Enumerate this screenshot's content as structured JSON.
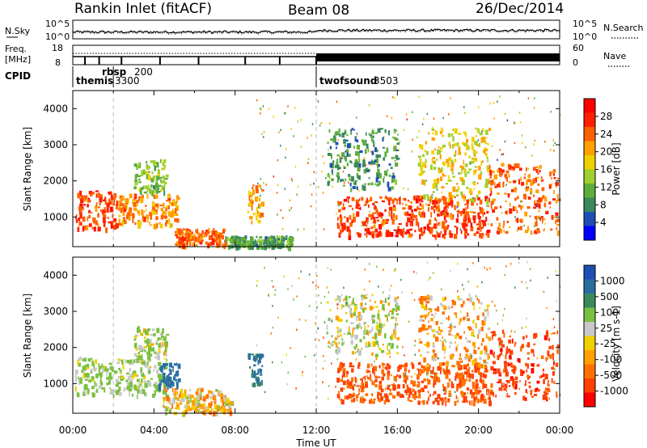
{
  "header": {
    "station": "Rankin Inlet (fitACF)",
    "beam": "Beam 08",
    "date": "26/Dec/2014"
  },
  "panels": {
    "nsky": {
      "left_label": "N.Sky",
      "right_label": "N.Search",
      "left_top": "10^5",
      "left_bottom": "10^0",
      "right_top": "10^5",
      "right_bottom": "10^0"
    },
    "freq": {
      "left_label_1": "Freq.",
      "left_label_2": "[MHz]",
      "left_top": "18",
      "left_bottom": "8",
      "right_label": "Nave",
      "right_top": "60",
      "right_bottom": "0"
    },
    "cpid": {
      "label": "CPID",
      "modes": [
        {
          "name": "themis",
          "id": "3300",
          "start": 0.0
        },
        {
          "name": "rbsp",
          "id": "200",
          "start": 2.0
        },
        {
          "name": "twofsound",
          "id": "3503",
          "start": 12.0
        }
      ]
    }
  },
  "axes": {
    "ylabel": "Slant Range [km]",
    "xlabel": "Time UT",
    "yticks": [
      "1000",
      "2000",
      "3000",
      "4000"
    ],
    "xticks": [
      "00:00",
      "04:00",
      "08:00",
      "12:00",
      "16:00",
      "20:00",
      "00:00"
    ]
  },
  "power_scale": {
    "label": "Power [dB]",
    "ticks": [
      "4",
      "8",
      "12",
      "16",
      "20",
      "24",
      "28"
    ],
    "colors": [
      "#0000ff",
      "#1f4fb4",
      "#3a8a5c",
      "#5fae3a",
      "#a0d030",
      "#f0d000",
      "#ffa000",
      "#ff6000",
      "#ff2000",
      "#ff0000"
    ]
  },
  "velocity_scale": {
    "label": "Velocity [m s-1]",
    "ticks": [
      "1000",
      "500",
      "100",
      "25",
      "-25",
      "-100",
      "-500",
      "-1000"
    ],
    "colors": [
      "#1f4fb4",
      "#2a6ea0",
      "#3a8a5c",
      "#7ac040",
      "#c8c8c8",
      "#f0d000",
      "#ffa000",
      "#ff7000",
      "#ff4000",
      "#ff0000"
    ]
  },
  "chart_data": {
    "type": "heatmap",
    "x_unit": "hours UT",
    "xlim": [
      0,
      24
    ],
    "ylim": [
      180,
      4500
    ],
    "power_regions": [
      {
        "t0": 0.1,
        "t1": 2.2,
        "r0": 700,
        "r1": 1750,
        "power": 26
      },
      {
        "t0": 2.2,
        "t1": 5.2,
        "r0": 800,
        "r1": 1650,
        "power": 22
      },
      {
        "t0": 5.0,
        "t1": 7.5,
        "r0": 250,
        "r1": 700,
        "power": 24
      },
      {
        "t0": 7.5,
        "t1": 10.8,
        "r0": 200,
        "r1": 500,
        "power": 10
      },
      {
        "t0": 8.6,
        "t1": 9.3,
        "r0": 900,
        "r1": 1900,
        "power": 20
      },
      {
        "t0": 3.0,
        "t1": 4.6,
        "r0": 1700,
        "r1": 2600,
        "power": 13
      },
      {
        "t0": 13.0,
        "t1": 20.5,
        "r0": 500,
        "r1": 1600,
        "power": 26
      },
      {
        "t0": 12.5,
        "t1": 16.0,
        "r0": 1800,
        "r1": 3500,
        "power": 9
      },
      {
        "t0": 17.0,
        "t1": 20.5,
        "r0": 1500,
        "r1": 3500,
        "power": 17
      },
      {
        "t0": 20.5,
        "t1": 23.9,
        "r0": 600,
        "r1": 2500,
        "power": 24
      }
    ],
    "velocity_regions": [
      {
        "t0": 0.1,
        "t1": 2.2,
        "r0": 700,
        "r1": 1750,
        "velocity": 150
      },
      {
        "t0": 2.2,
        "t1": 4.6,
        "r0": 700,
        "r1": 1700,
        "velocity": 150
      },
      {
        "t0": 4.2,
        "t1": 5.2,
        "r0": 900,
        "r1": 1600,
        "velocity": 800
      },
      {
        "t0": 4.4,
        "t1": 7.8,
        "r0": 200,
        "r1": 900,
        "velocity": 0
      },
      {
        "t0": 3.0,
        "t1": 4.6,
        "r0": 1700,
        "r1": 2600,
        "velocity": 100
      },
      {
        "t0": 8.6,
        "t1": 9.3,
        "r0": 1000,
        "r1": 1900,
        "velocity": 600
      },
      {
        "t0": 13.0,
        "t1": 20.5,
        "r0": 500,
        "r1": 1600,
        "velocity": -300
      },
      {
        "t0": 12.5,
        "t1": 16.0,
        "r0": 1800,
        "r1": 3500,
        "velocity": 60
      },
      {
        "t0": 17.0,
        "t1": 20.5,
        "r0": 1500,
        "r1": 3500,
        "velocity": -60
      },
      {
        "t0": 20.5,
        "t1": 23.9,
        "r0": 600,
        "r1": 2500,
        "velocity": -400
      }
    ],
    "power_ticks": [
      4,
      8,
      12,
      16,
      20,
      24,
      28
    ],
    "velocity_ticks": [
      1000,
      500,
      100,
      25,
      -25,
      -100,
      -500,
      -1000
    ],
    "freq_range_mhz": [
      8,
      18
    ],
    "nave_range": [
      0,
      60
    ],
    "nsky_range": [
      1,
      100000
    ],
    "mode_change_times": [
      2.0,
      12.0
    ]
  }
}
